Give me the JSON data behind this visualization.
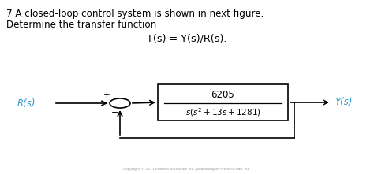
{
  "title_line1": "7 A closed-loop control system is shown in next figure.",
  "title_line2": "Determine the transfer function",
  "equation": "T(s) = Y(s)/R(s).",
  "numerator": "6205",
  "denominator": "s(s^2 + 13s + 1281)",
  "input_label": "R(s)",
  "output_label": "Y(s)",
  "plus_sign": "+",
  "minus_sign": "−",
  "bg_color": "#ffffff",
  "text_color": "#000000",
  "signal_color": "#3399cc",
  "box_color": "#000000",
  "arrow_color": "#000000"
}
